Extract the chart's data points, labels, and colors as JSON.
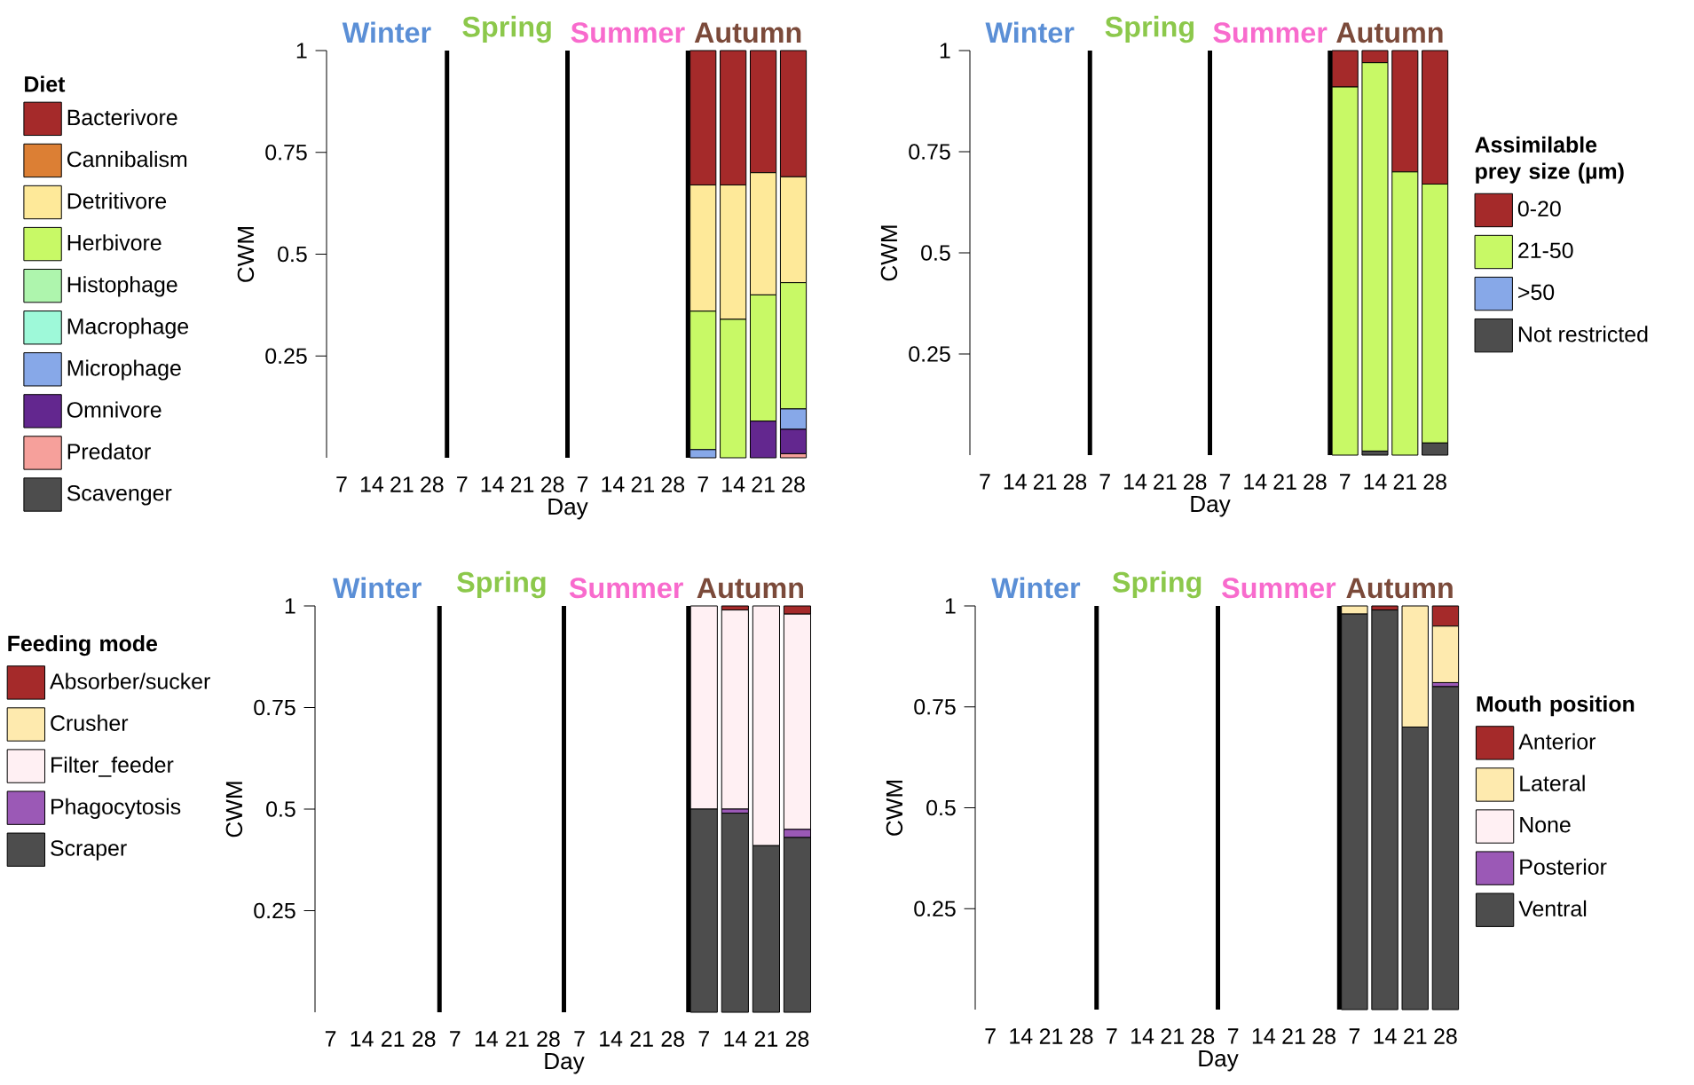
{
  "chart_data": [
    {
      "type": "bar",
      "stacked": true,
      "categories": [
        "7",
        "14",
        "21",
        "28",
        "7",
        "14",
        "21",
        "28",
        "7",
        "14",
        "21",
        "28",
        "7",
        "14",
        "21",
        "28"
      ],
      "xlabel": "Day",
      "ylabel": "CWM",
      "ylim": [
        0,
        1
      ],
      "yticks": [
        0.25,
        0.5,
        0.75,
        1
      ],
      "legend": "left",
      "legend_title": "Diet",
      "annotations": [
        "Winter",
        "Spring",
        "Summer",
        "Autumn"
      ],
      "series": [
        {
          "name": "Scavenger",
          "color": "#4d4d4d",
          "values": [
            null,
            null,
            null,
            null,
            null,
            null,
            null,
            null,
            null,
            null,
            null,
            null,
            0,
            0,
            0,
            0
          ]
        },
        {
          "name": "Predator",
          "color": "#f6a09b",
          "values": [
            null,
            null,
            null,
            null,
            null,
            null,
            null,
            null,
            null,
            null,
            null,
            null,
            0,
            0,
            0,
            0.01
          ]
        },
        {
          "name": "Omnivore",
          "color": "#63278f",
          "values": [
            null,
            null,
            null,
            null,
            null,
            null,
            null,
            null,
            null,
            null,
            null,
            null,
            0,
            0,
            0.09,
            0.06
          ]
        },
        {
          "name": "Microphage",
          "color": "#87a8e8",
          "values": [
            null,
            null,
            null,
            null,
            null,
            null,
            null,
            null,
            null,
            null,
            null,
            null,
            0.02,
            0,
            0,
            0.05
          ]
        },
        {
          "name": "Macrophage",
          "color": "#9ef9d9",
          "values": [
            null,
            null,
            null,
            null,
            null,
            null,
            null,
            null,
            null,
            null,
            null,
            null,
            0,
            0,
            0,
            0
          ]
        },
        {
          "name": "Histophage",
          "color": "#aef5ad",
          "values": [
            null,
            null,
            null,
            null,
            null,
            null,
            null,
            null,
            null,
            null,
            null,
            null,
            0,
            0,
            0,
            0
          ]
        },
        {
          "name": "Herbivore",
          "color": "#c8f966",
          "values": [
            null,
            null,
            null,
            null,
            null,
            null,
            null,
            null,
            null,
            null,
            null,
            null,
            0.34,
            0.34,
            0.31,
            0.31
          ]
        },
        {
          "name": "Detritivore",
          "color": "#fee999",
          "values": [
            null,
            null,
            null,
            null,
            null,
            null,
            null,
            null,
            null,
            null,
            null,
            null,
            0.31,
            0.33,
            0.3,
            0.26
          ]
        },
        {
          "name": "Cannibalism",
          "color": "#dc7f34",
          "values": [
            null,
            null,
            null,
            null,
            null,
            null,
            null,
            null,
            null,
            null,
            null,
            null,
            0,
            0,
            0,
            0
          ]
        },
        {
          "name": "Bacterivore",
          "color": "#a52a2a",
          "values": [
            null,
            null,
            null,
            null,
            null,
            null,
            null,
            null,
            null,
            null,
            null,
            null,
            0.33,
            0.33,
            0.3,
            0.31
          ]
        }
      ]
    },
    {
      "type": "bar",
      "stacked": true,
      "categories": [
        "7",
        "14",
        "21",
        "28",
        "7",
        "14",
        "21",
        "28",
        "7",
        "14",
        "21",
        "28",
        "7",
        "14",
        "21",
        "28"
      ],
      "xlabel": "Day",
      "ylabel": "CWM",
      "ylim": [
        0,
        1
      ],
      "yticks": [
        0.25,
        0.5,
        0.75,
        1
      ],
      "legend": "right",
      "legend_title": "Assimilable prey size (µm)",
      "annotations": [
        "Winter",
        "Spring",
        "Summer",
        "Autumn"
      ],
      "series": [
        {
          "name": "Not restricted",
          "color": "#4d4d4d",
          "values": [
            null,
            null,
            null,
            null,
            null,
            null,
            null,
            null,
            null,
            null,
            null,
            null,
            0,
            0.01,
            0,
            0.03
          ]
        },
        {
          "name": ">50",
          "color": "#87a8e8",
          "values": [
            null,
            null,
            null,
            null,
            null,
            null,
            null,
            null,
            null,
            null,
            null,
            null,
            0,
            0,
            0,
            0
          ]
        },
        {
          "name": "21-50",
          "color": "#c8f966",
          "values": [
            null,
            null,
            null,
            null,
            null,
            null,
            null,
            null,
            null,
            null,
            null,
            null,
            0.91,
            0.96,
            0.7,
            0.64
          ]
        },
        {
          "name": "0-20",
          "color": "#a52a2a",
          "values": [
            null,
            null,
            null,
            null,
            null,
            null,
            null,
            null,
            null,
            null,
            null,
            null,
            0.09,
            0.03,
            0.3,
            0.33
          ]
        }
      ]
    },
    {
      "type": "bar",
      "stacked": true,
      "categories": [
        "7",
        "14",
        "21",
        "28",
        "7",
        "14",
        "21",
        "28",
        "7",
        "14",
        "21",
        "28",
        "7",
        "14",
        "21",
        "28"
      ],
      "xlabel": "Day",
      "ylabel": "CWM",
      "ylim": [
        0,
        1
      ],
      "yticks": [
        0.25,
        0.5,
        0.75,
        1
      ],
      "legend": "left",
      "legend_title": "Feeding mode",
      "annotations": [
        "Winter",
        "Spring",
        "Summer",
        "Autumn"
      ],
      "series": [
        {
          "name": "Scraper",
          "color": "#4d4d4d",
          "values": [
            null,
            null,
            null,
            null,
            null,
            null,
            null,
            null,
            null,
            null,
            null,
            null,
            0.5,
            0.49,
            0.41,
            0.43
          ]
        },
        {
          "name": "Phagocytosis",
          "color": "#9b59b6",
          "values": [
            null,
            null,
            null,
            null,
            null,
            null,
            null,
            null,
            null,
            null,
            null,
            null,
            0,
            0.01,
            0,
            0.02
          ]
        },
        {
          "name": "Filter_feeder",
          "color": "#fff0f3",
          "values": [
            null,
            null,
            null,
            null,
            null,
            null,
            null,
            null,
            null,
            null,
            null,
            null,
            0.5,
            0.49,
            0.59,
            0.53
          ]
        },
        {
          "name": "Crusher",
          "color": "#feeaae",
          "values": [
            null,
            null,
            null,
            null,
            null,
            null,
            null,
            null,
            null,
            null,
            null,
            null,
            0,
            0,
            0,
            0
          ]
        },
        {
          "name": "Absorber/sucker",
          "color": "#a52a2a",
          "values": [
            null,
            null,
            null,
            null,
            null,
            null,
            null,
            null,
            null,
            null,
            null,
            null,
            0,
            0.01,
            0,
            0.02
          ]
        }
      ]
    },
    {
      "type": "bar",
      "stacked": true,
      "categories": [
        "7",
        "14",
        "21",
        "28",
        "7",
        "14",
        "21",
        "28",
        "7",
        "14",
        "21",
        "28",
        "7",
        "14",
        "21",
        "28"
      ],
      "xlabel": "Day",
      "ylabel": "CWM",
      "ylim": [
        0,
        1
      ],
      "yticks": [
        0.25,
        0.5,
        0.75,
        1
      ],
      "legend": "right",
      "legend_title": "Mouth position",
      "annotations": [
        "Winter",
        "Spring",
        "Summer",
        "Autumn"
      ],
      "series": [
        {
          "name": "Ventral",
          "color": "#4d4d4d",
          "values": [
            null,
            null,
            null,
            null,
            null,
            null,
            null,
            null,
            null,
            null,
            null,
            null,
            0.98,
            0.99,
            0.7,
            0.8
          ]
        },
        {
          "name": "Posterior",
          "color": "#9b59b6",
          "values": [
            null,
            null,
            null,
            null,
            null,
            null,
            null,
            null,
            null,
            null,
            null,
            null,
            0,
            0,
            0,
            0.01
          ]
        },
        {
          "name": "None",
          "color": "#fff0f3",
          "values": [
            null,
            null,
            null,
            null,
            null,
            null,
            null,
            null,
            null,
            null,
            null,
            null,
            0,
            0,
            0,
            0
          ]
        },
        {
          "name": "Lateral",
          "color": "#feeaae",
          "values": [
            null,
            null,
            null,
            null,
            null,
            null,
            null,
            null,
            null,
            null,
            null,
            null,
            0.02,
            0,
            0.3,
            0.14
          ]
        },
        {
          "name": "Anterior",
          "color": "#a52a2a",
          "values": [
            null,
            null,
            null,
            null,
            null,
            null,
            null,
            null,
            null,
            null,
            null,
            null,
            0,
            0.01,
            0,
            0.05
          ]
        }
      ]
    }
  ]
}
